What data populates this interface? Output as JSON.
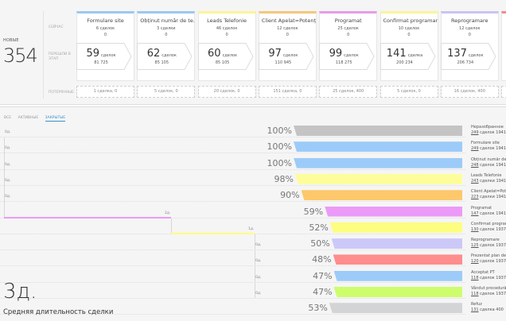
{
  "summary": {
    "new_label": "НОВЫЕ",
    "new_value": "354",
    "row_labels": {
      "now": "СЕЙЧАС",
      "passed": "ПЕРЕШЛИ В ЭТАП",
      "lost": "ПОТЕРЯННЫЕ"
    }
  },
  "stages": [
    {
      "title": "Formulare site",
      "now_count": "6 сделок",
      "now_sum": "0",
      "passed_count": "59",
      "passed_unit": "сделок",
      "passed_sum": "81 725",
      "lost": "1 сделка, 0",
      "color": "#9cc9ef"
    },
    {
      "title": "Obținut număr de te...",
      "now_count": "3 сделки",
      "now_sum": "0",
      "passed_count": "62",
      "passed_unit": "сделок",
      "passed_sum": "85 105",
      "lost": "5 сделок, 0",
      "color": "#9cc9ef"
    },
    {
      "title": "Leads Telefonie",
      "now_count": "46 сделок",
      "now_sum": "0",
      "passed_count": "60",
      "passed_unit": "сделок",
      "passed_sum": "85 105",
      "lost": "20 сделок, 0",
      "color": "#fbf59a"
    },
    {
      "title": "Client Apelat=Potenț...",
      "now_count": "12 сделок",
      "now_sum": "0",
      "passed_count": "97",
      "passed_unit": "сделок",
      "passed_sum": "110 945",
      "lost": "151 сделка, 0",
      "color": "#f5c77a"
    },
    {
      "title": "Programat",
      "now_count": "25 сделок",
      "now_sum": "0",
      "passed_count": "99",
      "passed_unit": "сделок",
      "passed_sum": "118 275",
      "lost": "25 сделок, 400",
      "color": "#e59de8"
    },
    {
      "title": "Confirmat programare",
      "now_count": "10 сделок",
      "now_sum": "0",
      "passed_count": "141",
      "passed_unit": "сделка",
      "passed_sum": "200 234",
      "lost": "5 сделок, 0",
      "color": "#fbf59a"
    },
    {
      "title": "Reprogramare",
      "now_count": "12 сделок",
      "now_sum": "0",
      "passed_count": "137",
      "passed_unit": "сделок",
      "passed_sum": "206 734",
      "lost": "16 сделок, 400",
      "color": "#c9c3f3"
    },
    {
      "title": "",
      "now_count": "",
      "now_sum": "",
      "passed_count": "",
      "passed_unit": "",
      "passed_sum": "",
      "lost": "",
      "color": "#f08c8c"
    }
  ],
  "tabs": [
    {
      "label": "ВСЕ",
      "active": false
    },
    {
      "label": "АКТИВНЫЕ",
      "active": false
    },
    {
      "label": "ЗАКРЫТЫЕ",
      "active": true
    }
  ],
  "funnel": [
    {
      "name": "Неразобранное",
      "count": "249",
      "rest": "сделок 19415",
      "pct": 100,
      "pct_label": "100%",
      "color": "#c4c4c4",
      "days": "0д."
    },
    {
      "name": "Formulare site",
      "count": "249",
      "rest": "сделок 19415",
      "pct": 100,
      "pct_label": "100%",
      "color": "#9ccbf9",
      "days": "0д."
    },
    {
      "name": "Obținut număr de",
      "count": "248",
      "rest": "сделок 19415",
      "pct": 100,
      "pct_label": "100%",
      "color": "#9ccbf9",
      "days": "0д."
    },
    {
      "name": "Leads Telefonie",
      "count": "243",
      "rest": "сделки 19415",
      "pct": 98,
      "pct_label": "98%",
      "color": "#fdfd9c",
      "days": "0д."
    },
    {
      "name": "Client Apelat=Pote",
      "count": "223",
      "rest": "сделки 19415",
      "pct": 90,
      "pct_label": "90%",
      "color": "#fdc86b",
      "days": "0д."
    },
    {
      "name": "Programat",
      "count": "147",
      "rest": "сделок 19415",
      "pct": 59,
      "pct_label": "59%",
      "color": "#eb9bf7",
      "days": "2д."
    },
    {
      "name": "Confirmat program",
      "count": "130",
      "rest": "сделок 19375",
      "pct": 52,
      "pct_label": "52%",
      "color": "#fdfd80",
      "days": "1д."
    },
    {
      "name": "Reprogramare",
      "count": "125",
      "rest": "сделок 19375",
      "pct": 50,
      "pct_label": "50%",
      "color": "#ccc8f8",
      "days": "0д."
    },
    {
      "name": "Prezentat plan de",
      "count": "120",
      "rest": "сделок 19375",
      "pct": 48,
      "pct_label": "48%",
      "color": "#fe8d8d",
      "days": "0д."
    },
    {
      "name": "Acceptat PT",
      "count": "118",
      "rest": "сделок 19375",
      "pct": 47,
      "pct_label": "47%",
      "color": "#9ccbf9",
      "days": "0д."
    },
    {
      "name": "Vândut procedură",
      "count": "118",
      "rest": "сделок 19375",
      "pct": 47,
      "pct_label": "47%",
      "color": "#cdfd6c",
      "days": "0д."
    },
    {
      "name": "Refuz",
      "count": "131",
      "rest": "сделка 400",
      "pct": 53,
      "pct_label": "53%",
      "color": "#d2d4d6",
      "days": ""
    }
  ],
  "average": {
    "value": "3д.",
    "label": "Средняя длительность сделки"
  }
}
